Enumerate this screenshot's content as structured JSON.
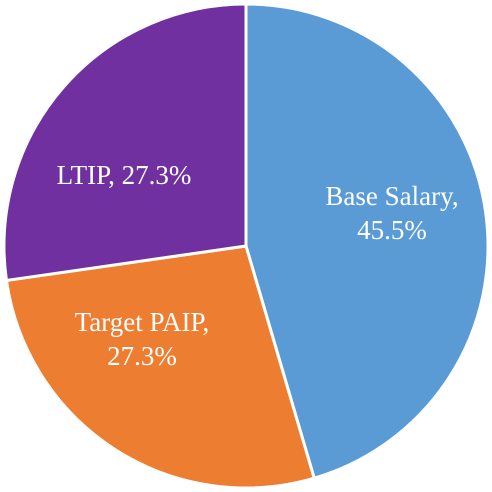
{
  "chart_data": {
    "type": "pie",
    "title": "",
    "start_angle_deg": 0,
    "direction": "clockwise",
    "slices": [
      {
        "label": "Base Salary",
        "value": 45.5,
        "color": "#5B9BD5",
        "label_lines": [
          "Base Salary,",
          "45.5%"
        ]
      },
      {
        "label": "Target PAIP",
        "value": 27.3,
        "color": "#ED7D31",
        "label_lines": [
          "Target PAIP,",
          "27.3%"
        ]
      },
      {
        "label": "LTIP",
        "value": 27.3,
        "color": "#7030A0",
        "label_lines": [
          "LTIP, 27.3%"
        ]
      }
    ]
  }
}
